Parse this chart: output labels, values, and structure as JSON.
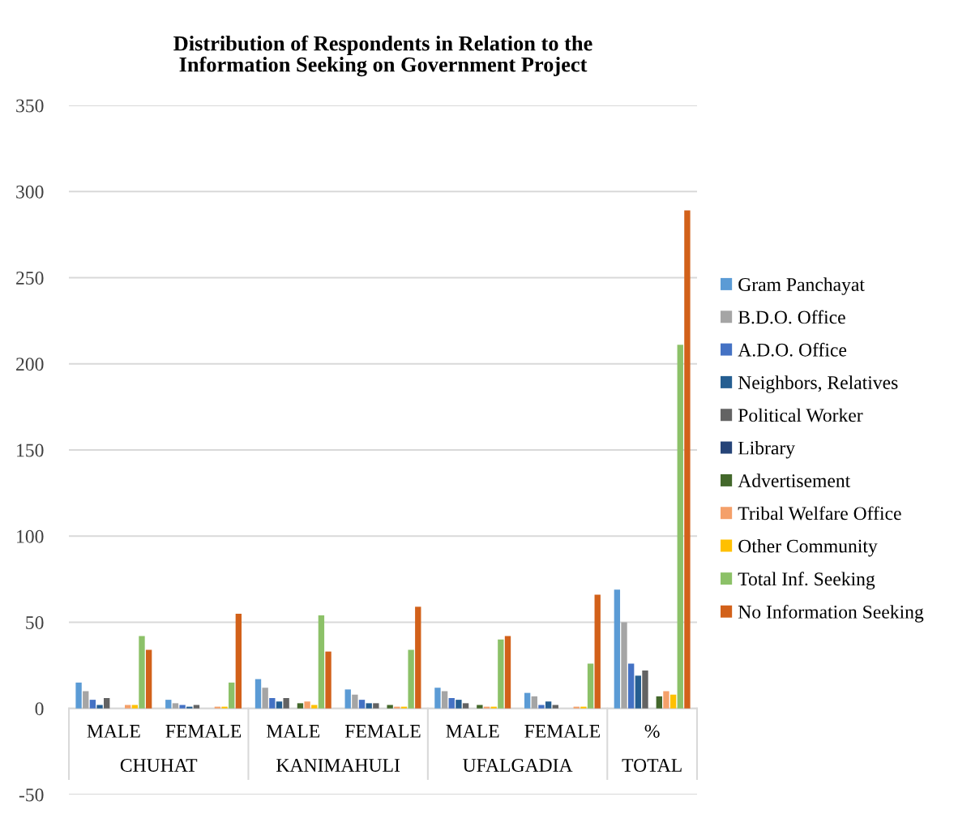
{
  "chart_data": {
    "type": "bar",
    "title": "Distribution of Respondents in Relation to the\nInformation Seeking on Government Project",
    "categories": [
      "MALE",
      "FEMALE",
      "MALE",
      "FEMALE",
      "MALE",
      "FEMALE",
      "%"
    ],
    "annotations": [
      "CHUHAT",
      "KANIMAHULI",
      "UFALGADIA",
      "TOTAL"
    ],
    "series": [
      {
        "name": "Gram Panchayat",
        "color": "#5b9bd5",
        "values": [
          15,
          5,
          17,
          11,
          12,
          9,
          69
        ]
      },
      {
        "name": "B.D.O. Office",
        "color": "#a5a5a5",
        "values": [
          10,
          3,
          12,
          8,
          10,
          7,
          50
        ]
      },
      {
        "name": "A.D.O. Office",
        "color": "#4472c4",
        "values": [
          5,
          2,
          6,
          5,
          6,
          2,
          26
        ]
      },
      {
        "name": "Neighbors, Relatives",
        "color": "#255e91",
        "values": [
          2,
          1,
          4,
          3,
          5,
          4,
          19
        ]
      },
      {
        "name": "Political Worker",
        "color": "#636363",
        "values": [
          6,
          2,
          6,
          3,
          3,
          2,
          22
        ]
      },
      {
        "name": "Library",
        "color": "#264478",
        "values": [
          0,
          0,
          0,
          0,
          0,
          0,
          0
        ]
      },
      {
        "name": "Advertisement",
        "color": "#43682b",
        "values": [
          0,
          0,
          3,
          2,
          2,
          0,
          7
        ]
      },
      {
        "name": "Tribal Welfare Office",
        "color": "#f4a06a",
        "values": [
          2,
          1,
          4,
          1,
          1,
          1,
          10
        ]
      },
      {
        "name": "Other Community",
        "color": "#ffc000",
        "values": [
          2,
          1,
          2,
          1,
          1,
          1,
          8
        ]
      },
      {
        "name": "Total Inf. Seeking",
        "color": "#8cc168",
        "values": [
          42,
          15,
          54,
          34,
          40,
          26,
          211
        ]
      },
      {
        "name": "No Information Seeking",
        "color": "#d2611a",
        "values": [
          34,
          55,
          33,
          59,
          42,
          66,
          289
        ]
      }
    ],
    "ylim": [
      -50,
      350
    ],
    "yticks": [
      -50,
      0,
      50,
      100,
      150,
      200,
      250,
      300,
      350
    ],
    "grid": "y",
    "legend": "right"
  }
}
